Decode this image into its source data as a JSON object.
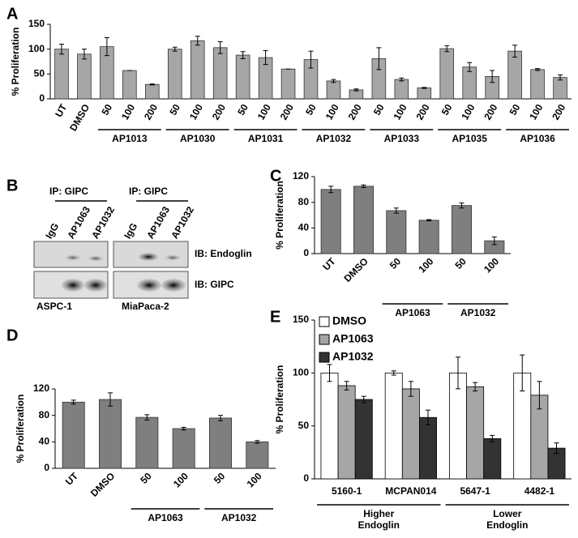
{
  "chart_data": [
    {
      "type": "bar",
      "panel": "A",
      "ylabel": "% Proliferation",
      "color": "#a6a6a6",
      "categories": [
        "UT",
        "DMSO",
        "50",
        "100",
        "200",
        "50",
        "100",
        "200",
        "50",
        "100",
        "200",
        "50",
        "100",
        "200",
        "50",
        "100",
        "200",
        "50",
        "100",
        "200",
        "50",
        "100",
        "200"
      ],
      "values": [
        100,
        90,
        105,
        57,
        29,
        100,
        117,
        103,
        88,
        83,
        60,
        79,
        36,
        18,
        81,
        39,
        22,
        101,
        64,
        45,
        96,
        59,
        43
      ],
      "errors": [
        10,
        10,
        18,
        0,
        1,
        4,
        9,
        12,
        7,
        14,
        0,
        17,
        3,
        2,
        22,
        3,
        1,
        6,
        9,
        12,
        12,
        2,
        5
      ],
      "groups": [
        {
          "label": "AP1013",
          "span": [
            2,
            4
          ]
        },
        {
          "label": "AP1030",
          "span": [
            5,
            7
          ]
        },
        {
          "label": "AP1031",
          "span": [
            8,
            10
          ]
        },
        {
          "label": "AP1032",
          "span": [
            11,
            13
          ]
        },
        {
          "label": "AP1033",
          "span": [
            14,
            16
          ]
        },
        {
          "label": "AP1035",
          "span": [
            17,
            19
          ]
        },
        {
          "label": "AP1036",
          "span": [
            20,
            22
          ]
        }
      ],
      "ylim": [
        0,
        150
      ],
      "yticks": [
        0,
        50,
        100,
        150
      ]
    },
    {
      "type": "bar",
      "panel": "C",
      "ylabel": "% Proliferation",
      "color": "#7f7f7f",
      "categories": [
        "UT",
        "DMSO",
        "50",
        "100",
        "50",
        "100"
      ],
      "values": [
        100,
        105,
        67,
        52,
        75,
        20
      ],
      "errors": [
        5,
        2,
        4,
        1,
        4,
        6
      ],
      "groups": [
        {
          "label": "AP1063",
          "span": [
            2,
            3
          ]
        },
        {
          "label": "AP1032",
          "span": [
            4,
            5
          ]
        }
      ],
      "ylim": [
        0,
        120
      ],
      "yticks": [
        0,
        40,
        80,
        120
      ]
    },
    {
      "type": "bar",
      "panel": "D",
      "ylabel": "% Proliferation",
      "color": "#7f7f7f",
      "categories": [
        "UT",
        "DMSO",
        "50",
        "100",
        "50",
        "100"
      ],
      "values": [
        100,
        104,
        77,
        60,
        76,
        40
      ],
      "errors": [
        3,
        10,
        4,
        2,
        4,
        2
      ],
      "groups": [
        {
          "label": "AP1063",
          "span": [
            2,
            3
          ]
        },
        {
          "label": "AP1032",
          "span": [
            4,
            5
          ]
        }
      ],
      "ylim": [
        0,
        120
      ],
      "yticks": [
        0,
        40,
        80,
        120
      ]
    },
    {
      "type": "bar",
      "panel": "E",
      "ylabel": "% Proliferation",
      "legend": "upper left",
      "categories": [
        "5160-1",
        "MCPAN014",
        "5647-1",
        "4482-1"
      ],
      "series": [
        {
          "name": "DMSO",
          "color": "#ffffff",
          "values": [
            100,
            100,
            100,
            100
          ],
          "errors": [
            8,
            2,
            15,
            17
          ]
        },
        {
          "name": "AP1063",
          "color": "#a6a6a6",
          "values": [
            88,
            85,
            87,
            79
          ],
          "errors": [
            4,
            7,
            4,
            13
          ]
        },
        {
          "name": "AP1032",
          "color": "#333333",
          "values": [
            75,
            58,
            38,
            29
          ],
          "errors": [
            3,
            7,
            3,
            5
          ]
        }
      ],
      "groups": [
        {
          "label": [
            "Higher",
            "Endoglin"
          ],
          "span": [
            0,
            1
          ]
        },
        {
          "label": [
            "Lower",
            "Endoglin"
          ],
          "span": [
            2,
            3
          ]
        }
      ],
      "ylim": [
        0,
        150
      ],
      "yticks": [
        0,
        50,
        100,
        150
      ]
    }
  ],
  "blot": {
    "panel": "B",
    "ip": [
      "IP: GIPC",
      "IP: GIPC"
    ],
    "lanes": [
      "IgG",
      "AP1063",
      "AP1032",
      "IgG",
      "AP1063",
      "AP1032"
    ],
    "rows": [
      "IB: Endoglin",
      "IB: GIPC"
    ],
    "cell_lines": [
      "ASPC-1",
      "MiaPaca-2"
    ]
  }
}
